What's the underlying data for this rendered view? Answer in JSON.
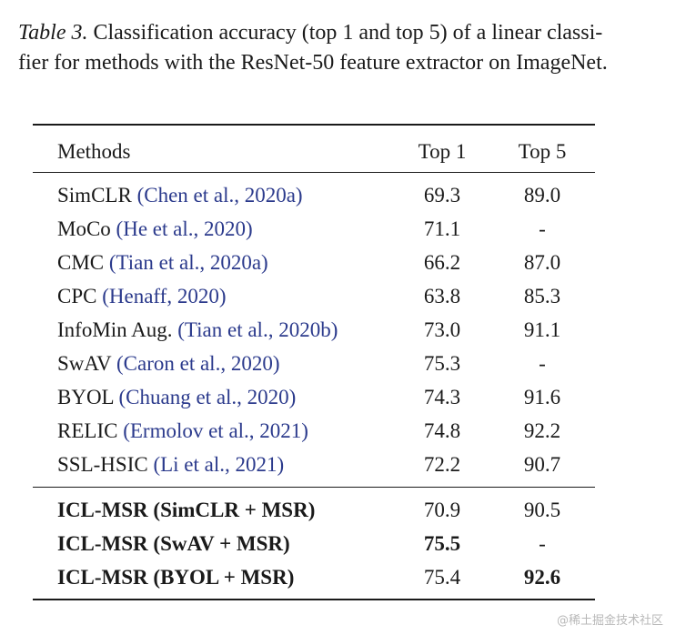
{
  "caption": {
    "label": "Table 3.",
    "line1": " Classification accuracy (top 1 and top 5) of a linear classi-",
    "line2": "fier for methods with the ResNet-50 feature extractor on ImageNet."
  },
  "table": {
    "headers": {
      "methods": "Methods",
      "top1": "Top 1",
      "top5": "Top 5"
    },
    "rows": [
      {
        "method": "SimCLR",
        "cite": "(Chen et al., 2020a)",
        "top1": "69.3",
        "top5": "89.0"
      },
      {
        "method": "MoCo",
        "cite": "(He et al., 2020)",
        "top1": "71.1",
        "top5": "-"
      },
      {
        "method": "CMC",
        "cite": "(Tian et al., 2020a)",
        "top1": "66.2",
        "top5": "87.0"
      },
      {
        "method": "CPC",
        "cite": "(Henaff, 2020)",
        "top1": "63.8",
        "top5": "85.3"
      },
      {
        "method": "InfoMin Aug.",
        "cite": "(Tian et al., 2020b)",
        "top1": "73.0",
        "top5": "91.1"
      },
      {
        "method": "SwAV",
        "cite": "(Caron et al., 2020)",
        "top1": "75.3",
        "top5": "-"
      },
      {
        "method": "BYOL",
        "cite": "(Chuang et al., 2020)",
        "top1": "74.3",
        "top5": "91.6"
      },
      {
        "method": "RELIC",
        "cite": "(Ermolov et al., 2021)",
        "top1": "74.8",
        "top5": "92.2"
      },
      {
        "method": "SSL-HSIC",
        "cite": "(Li et al., 2021)",
        "top1": "72.2",
        "top5": "90.7"
      }
    ],
    "ours": [
      {
        "method": "ICL-MSR (SimCLR + MSR)",
        "top1": "70.9",
        "top5": "90.5"
      },
      {
        "method": "ICL-MSR (SwAV + MSR)",
        "top1": "75.5",
        "top5": "-"
      },
      {
        "method": "ICL-MSR (BYOL + MSR)",
        "top1": "75.4",
        "top5": "92.6"
      }
    ]
  },
  "watermark": "@稀土掘金技术社区",
  "colors": {
    "citation": "#2b3a8c",
    "text": "#1a1a1a",
    "watermark": "#b8b8b8"
  }
}
